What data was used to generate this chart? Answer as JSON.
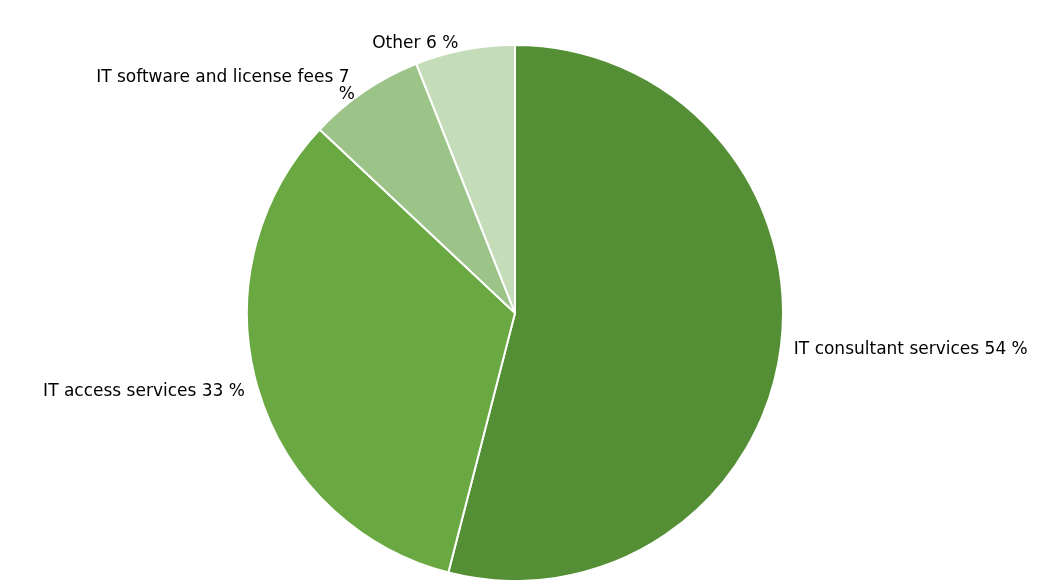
{
  "chart_data": {
    "type": "pie",
    "categories": [
      "IT consultant services",
      "IT access services",
      "IT software and license fees",
      "Other"
    ],
    "values": [
      54,
      33,
      7,
      6
    ],
    "value_labels": [
      "54 %",
      "33 %",
      "7 %",
      "6 %"
    ],
    "colors": [
      "#548f35",
      "#6aa842",
      "#9dc488",
      "#c5dcb8"
    ],
    "legend": false
  }
}
